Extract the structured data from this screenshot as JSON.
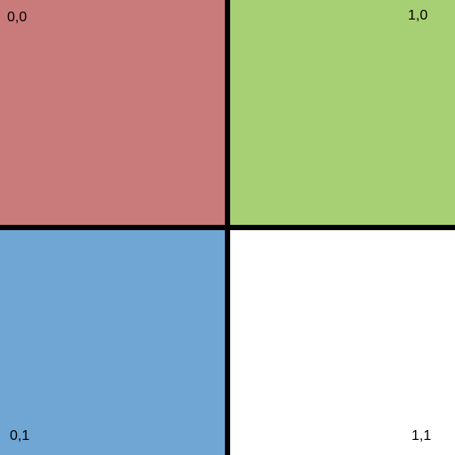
{
  "quadrants": [
    {
      "id": "q00",
      "label": "0,0",
      "color": "#c97a7a"
    },
    {
      "id": "q10",
      "label": "1,0",
      "color": "#a7d075"
    },
    {
      "id": "q01",
      "label": "0,1",
      "color": "#6fa6d4"
    },
    {
      "id": "q11",
      "label": "1,1",
      "color": "#ffffff"
    }
  ],
  "divider_color": "#000000"
}
